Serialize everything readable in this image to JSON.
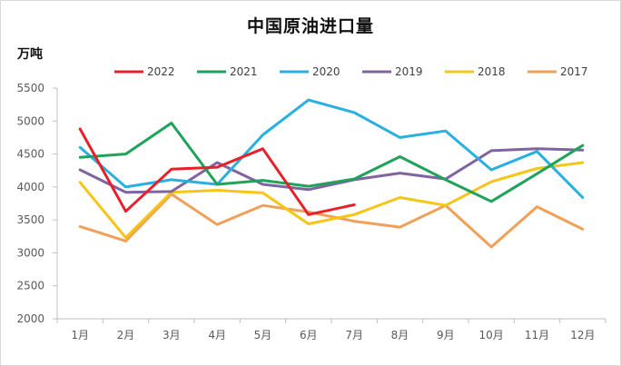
{
  "chart_data": {
    "type": "line",
    "title": "中国原油进口量",
    "ylabel": "万吨",
    "xlabel": "",
    "categories": [
      "1月",
      "2月",
      "3月",
      "4月",
      "5月",
      "6月",
      "7月",
      "8月",
      "9月",
      "10月",
      "11月",
      "12月"
    ],
    "ylim": [
      2000,
      5500
    ],
    "yticks": [
      2000,
      2500,
      3000,
      3500,
      4000,
      4500,
      5000,
      5500
    ],
    "grid": false,
    "legend_position": "top",
    "series": [
      {
        "name": "2022",
        "color": "#e8202a",
        "values": [
          4880,
          3630,
          4270,
          4300,
          4580,
          3580,
          3730,
          null,
          null,
          null,
          null,
          null
        ]
      },
      {
        "name": "2021",
        "color": "#1fa25a",
        "values": [
          4450,
          4500,
          4970,
          4040,
          4100,
          4010,
          4120,
          4460,
          4110,
          3780,
          4200,
          4630
        ]
      },
      {
        "name": "2020",
        "color": "#27b0e0",
        "values": [
          4600,
          4000,
          4110,
          4040,
          4790,
          5320,
          5130,
          4750,
          4850,
          4260,
          4540,
          3840
        ]
      },
      {
        "name": "2019",
        "color": "#8064a2",
        "values": [
          4260,
          3920,
          3930,
          4370,
          4040,
          3960,
          4110,
          4210,
          4120,
          4550,
          4580,
          4560
        ]
      },
      {
        "name": "2018",
        "color": "#f5c518",
        "values": [
          4070,
          3230,
          3920,
          3950,
          3910,
          3440,
          3580,
          3840,
          3720,
          4080,
          4280,
          4370
        ]
      },
      {
        "name": "2017",
        "color": "#f0a058",
        "values": [
          3400,
          3180,
          3890,
          3430,
          3720,
          3620,
          3480,
          3390,
          3720,
          3090,
          3700,
          3360
        ]
      }
    ]
  }
}
